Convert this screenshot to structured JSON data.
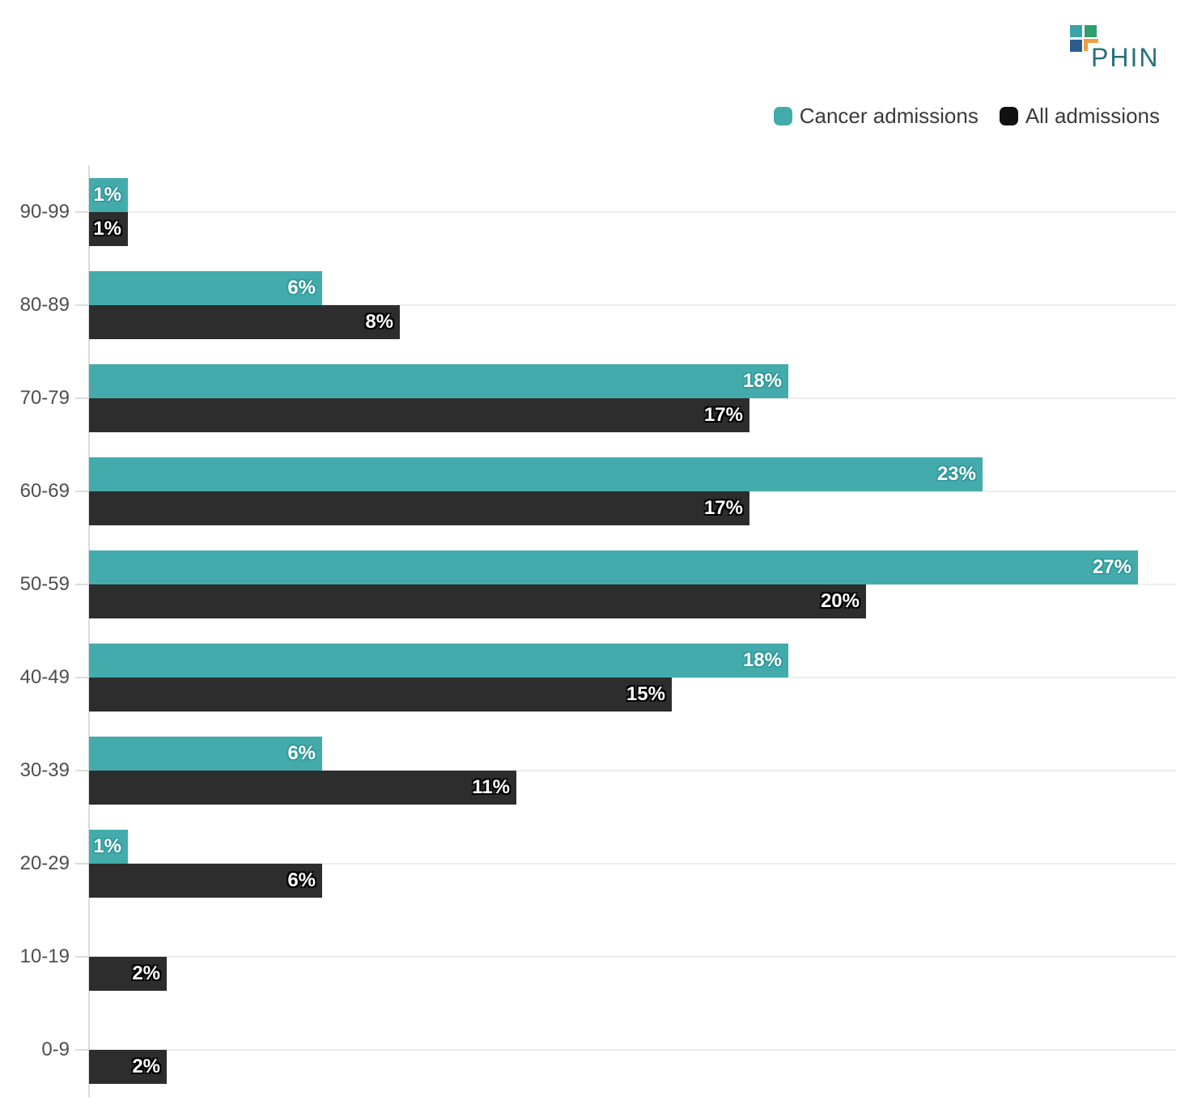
{
  "logo": {
    "text": "PHIN",
    "colors": {
      "square_teal": "#3aa5a8",
      "square_green": "#2f9e6c",
      "square_blue": "#2b5c8e",
      "corner_orange": "#f49b3f",
      "text": "#26717c"
    }
  },
  "legend": {
    "items": [
      {
        "label": "Cancer admissions",
        "color": "#44abad"
      },
      {
        "label": "All admissions",
        "color": "#111111"
      }
    ]
  },
  "chart_data": {
    "type": "bar",
    "orientation": "horizontal",
    "title": "",
    "xlabel": "",
    "ylabel": "",
    "value_unit": "%",
    "xlim": [
      0,
      28
    ],
    "grid": "horizontal category lines",
    "legend_position": "top-right",
    "categories": [
      "90-99",
      "80-89",
      "70-79",
      "60-69",
      "50-59",
      "40-49",
      "30-39",
      "20-29",
      "10-19",
      "0-9"
    ],
    "series": [
      {
        "name": "Cancer admissions",
        "color": "#44abad",
        "values": [
          1,
          6,
          18,
          23,
          27,
          18,
          6,
          1,
          null,
          null
        ]
      },
      {
        "name": "All admissions",
        "color": "#2d2d2d",
        "values": [
          1,
          8,
          17,
          17,
          20,
          15,
          11,
          6,
          2,
          2
        ]
      }
    ],
    "colors": {
      "gridline": "#ededed",
      "axis_line": "#dcdcdc",
      "category_label": "#4e4e4e",
      "bar_label": "#ffffff"
    }
  }
}
